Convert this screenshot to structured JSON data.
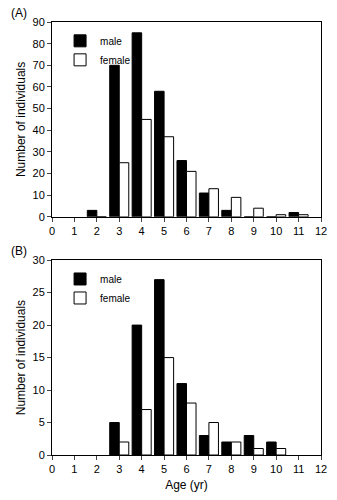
{
  "chart_data": [
    {
      "type": "bar",
      "title": "(A)",
      "y_label": "Number of individuals",
      "x": [
        2,
        3,
        4,
        5,
        6,
        7,
        8,
        9,
        10,
        11
      ],
      "series": [
        {
          "name": "male",
          "color": "#000000",
          "values": [
            3,
            70,
            85,
            58,
            26,
            11,
            3,
            0,
            0,
            2
          ]
        },
        {
          "name": "female",
          "color": "#ffffff",
          "values": [
            0,
            25,
            45,
            37,
            21,
            13,
            9,
            4,
            1,
            1
          ]
        }
      ],
      "xlim": [
        0,
        12
      ],
      "xticks": [
        0,
        1,
        2,
        3,
        4,
        5,
        6,
        7,
        8,
        9,
        10,
        11,
        12
      ],
      "ylim": [
        0,
        90
      ],
      "yticks": [
        0,
        10,
        20,
        30,
        40,
        50,
        60,
        70,
        80,
        90
      ],
      "legend": "upper left",
      "grid": false
    },
    {
      "type": "bar",
      "title": "(B)",
      "x_label": "Age (yr)",
      "y_label": "Number of individuals",
      "x": [
        3,
        4,
        5,
        6,
        7,
        8,
        9,
        10
      ],
      "series": [
        {
          "name": "male",
          "color": "#000000",
          "values": [
            5,
            20,
            27,
            11,
            3,
            2,
            3,
            2
          ]
        },
        {
          "name": "female",
          "color": "#ffffff",
          "values": [
            2,
            7,
            15,
            8,
            5,
            2,
            1,
            1
          ]
        }
      ],
      "xlim": [
        0,
        12
      ],
      "xticks": [
        0,
        1,
        2,
        3,
        4,
        5,
        6,
        7,
        8,
        9,
        10,
        11,
        12
      ],
      "ylim": [
        0,
        30
      ],
      "yticks": [
        0,
        5,
        10,
        15,
        20,
        25,
        30
      ],
      "legend": "upper left",
      "grid": false
    }
  ]
}
